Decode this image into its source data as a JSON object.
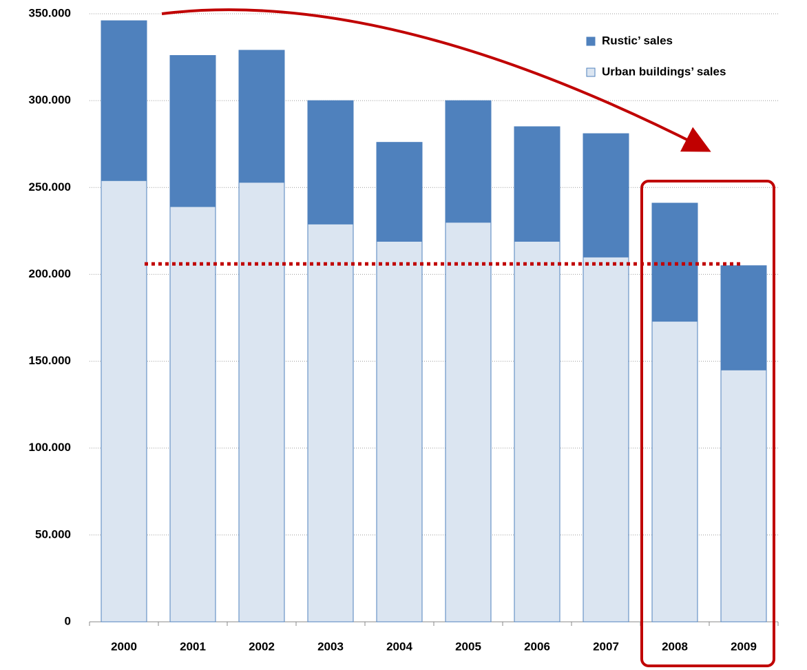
{
  "chart_data": {
    "type": "stacked-bar",
    "categories": [
      "2000",
      "2001",
      "2002",
      "2003",
      "2004",
      "2005",
      "2006",
      "2007",
      "2008",
      "2009"
    ],
    "series": [
      {
        "name": "Urban buildings’ sales",
        "color": "#dbe5f1",
        "values": [
          254000,
          239000,
          253000,
          229000,
          219000,
          230000,
          219000,
          210000,
          173000,
          145000
        ]
      },
      {
        "name": "Rustic’ sales",
        "color": "#4f81bd",
        "values": [
          92000,
          87000,
          76000,
          71000,
          57000,
          70000,
          66000,
          71000,
          68000,
          60000
        ]
      }
    ],
    "ylim": [
      0,
      350000
    ],
    "yticks": [
      0,
      {
        "value": 50000,
        "label": "50.000"
      },
      {
        "value": 100000,
        "label": "100.000"
      },
      {
        "value": 150000,
        "label": "150.000"
      },
      {
        "value": 200000,
        "label": "200.000"
      },
      {
        "value": 250000,
        "label": "250.000"
      },
      {
        "value": 300000,
        "label": "300.000"
      },
      {
        "value": 350000,
        "label": "350.000"
      }
    ],
    "grid": true,
    "legend": "top-right",
    "reference_line": {
      "value": 206000,
      "color": "#c00000"
    }
  }
}
